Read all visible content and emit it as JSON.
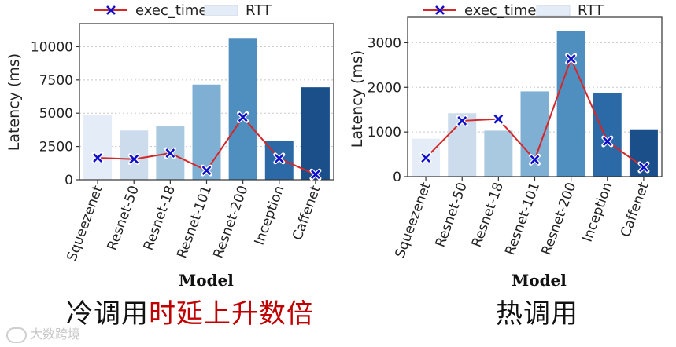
{
  "chart_data": [
    {
      "type": "bar",
      "categories": [
        "Squeezenet",
        "Resnet-50",
        "Resnet-18",
        "Resnet-101",
        "Resnet-200",
        "Inception",
        "Caffenet"
      ],
      "series": [
        {
          "name": "RTT",
          "kind": "bar",
          "values": [
            4850,
            3700,
            4050,
            7150,
            10600,
            2950,
            6950
          ]
        },
        {
          "name": "exec_time",
          "kind": "line",
          "values": [
            1650,
            1550,
            2000,
            700,
            4700,
            1600,
            400
          ]
        }
      ],
      "bar_colors": [
        "#e4edf7",
        "#ccdcec",
        "#a9c9e0",
        "#7fb0d4",
        "#4f8fc0",
        "#2b6aa6",
        "#1a4f8a"
      ],
      "line_color": "#d62728",
      "marker_color": "#1010cc",
      "xlabel": "Model",
      "ylabel": "Latency (ms)",
      "ylim": [
        0,
        11500
      ],
      "yticks": [
        0,
        2500,
        5000,
        7500,
        10000
      ],
      "ytick_labels": [
        "0",
        "2500",
        "5000",
        "7500",
        "10000"
      ],
      "legend": "top",
      "grid": "horizontal dashed"
    },
    {
      "type": "bar",
      "categories": [
        "Squeezenet",
        "Resnet-50",
        "Resnet-18",
        "Resnet-101",
        "Resnet-200",
        "Inception",
        "Caffenet"
      ],
      "series": [
        {
          "name": "RTT",
          "kind": "bar",
          "values": [
            850,
            1420,
            1030,
            1910,
            3270,
            1880,
            1060
          ]
        },
        {
          "name": "exec_time",
          "kind": "line",
          "values": [
            420,
            1250,
            1290,
            380,
            2640,
            790,
            210
          ]
        }
      ],
      "bar_colors": [
        "#e4edf7",
        "#ccdcec",
        "#a9c9e0",
        "#7fb0d4",
        "#4f8fc0",
        "#2b6aa6",
        "#1a4f8a"
      ],
      "line_color": "#d62728",
      "marker_color": "#1010cc",
      "xlabel": "Model",
      "ylabel": "Latency (ms)",
      "ylim": [
        0,
        3500
      ],
      "yticks": [
        0,
        1000,
        2000,
        3000
      ],
      "ytick_labels": [
        "0",
        "1000",
        "2000",
        "3000"
      ],
      "legend": "top",
      "grid": "horizontal dashed"
    }
  ],
  "captions": {
    "left_black": "冷调用",
    "left_red": "时延上升数倍",
    "right": "热调用"
  },
  "watermark": {
    "text": "大数跨境"
  }
}
